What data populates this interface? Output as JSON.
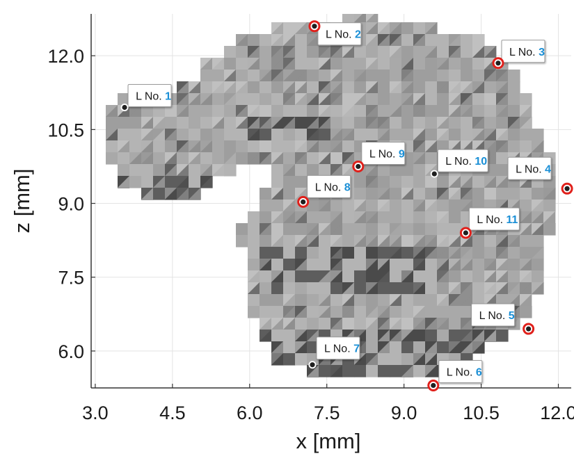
{
  "chart_data": {
    "type": "scatter",
    "title": "",
    "xlabel": "x [mm]",
    "ylabel": "z [mm]",
    "xlim": [
      2.92,
      12.25
    ],
    "ylim": [
      5.25,
      12.85
    ],
    "xticks": [
      "3.0",
      "4.5",
      "6.0",
      "7.5",
      "9.0",
      "10.5",
      "12.0"
    ],
    "xtick_values": [
      3.0,
      4.5,
      6.0,
      7.5,
      9.0,
      10.5,
      12.0
    ],
    "yticks": [
      "6.0",
      "7.5",
      "9.0",
      "10.5",
      "12.0"
    ],
    "ytick_values": [
      6.0,
      7.5,
      9.0,
      10.5,
      12.0
    ],
    "grid": true,
    "background": "3D gray voxel surface (rendered mesh)",
    "landmark_prefix": "L No.",
    "colors": {
      "label_number": "#1a8fd6",
      "marker_ring": "#e0201b",
      "marker_dot": "#1f1f1f",
      "grid": "#e3e3e3"
    },
    "points": [
      {
        "id": "1",
        "x": 3.57,
        "z": 10.95,
        "ring": false
      },
      {
        "id": "2",
        "x": 7.26,
        "z": 12.6,
        "ring": true
      },
      {
        "id": "3",
        "x": 10.83,
        "z": 11.85,
        "ring": true
      },
      {
        "id": "4",
        "x": 12.17,
        "z": 9.3,
        "ring": true
      },
      {
        "id": "5",
        "x": 11.42,
        "z": 6.45,
        "ring": true
      },
      {
        "id": "6",
        "x": 9.57,
        "z": 5.3,
        "ring": true
      },
      {
        "id": "7",
        "x": 7.22,
        "z": 5.72,
        "ring": false
      },
      {
        "id": "8",
        "x": 7.04,
        "z": 9.03,
        "ring": true
      },
      {
        "id": "9",
        "x": 8.11,
        "z": 9.75,
        "ring": true
      },
      {
        "id": "10",
        "x": 9.59,
        "z": 9.6,
        "ring": false
      },
      {
        "id": "11",
        "x": 10.2,
        "z": 8.4,
        "ring": true
      }
    ]
  }
}
